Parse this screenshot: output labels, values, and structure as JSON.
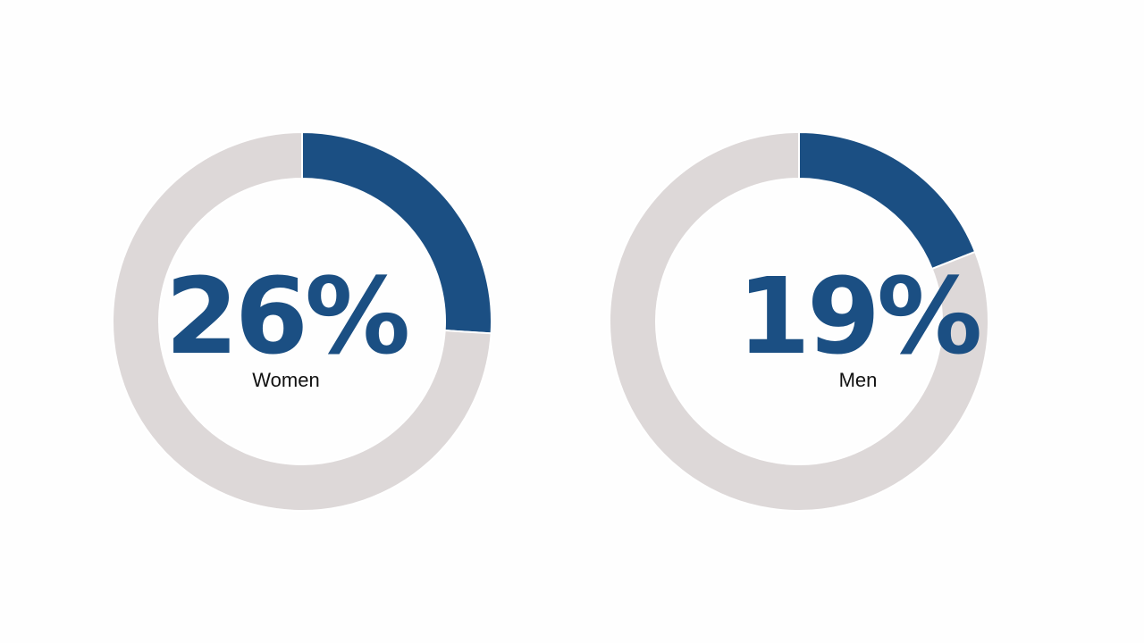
{
  "colors": {
    "accent": "#1b4f83",
    "track": "#ddd8d8",
    "background": "#fefefe"
  },
  "chart_data": [
    {
      "type": "pie",
      "variant": "donut",
      "label": "Women",
      "value": 26,
      "display": "26%",
      "slices": [
        {
          "name": "Women",
          "value": 26
        },
        {
          "name": "",
          "value": 74
        }
      ]
    },
    {
      "type": "pie",
      "variant": "donut",
      "label": "Men",
      "value": 19,
      "display": "19%",
      "slices": [
        {
          "name": "Men",
          "value": 19
        },
        {
          "name": "",
          "value": 81
        }
      ]
    }
  ]
}
